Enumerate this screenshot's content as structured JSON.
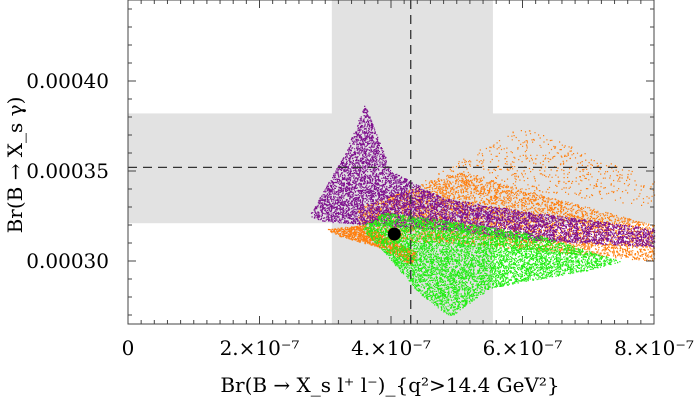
{
  "chart_data": {
    "type": "scatter",
    "title": "",
    "xlabel": "Br(B → X_s l⁺ l⁻)_{q²>14.4 GeV²}",
    "ylabel": "Br(B → X_s γ)",
    "xlim": [
      0,
      8e-07
    ],
    "ylim": [
      0.000265,
      0.000445
    ],
    "x_ticks": [
      {
        "value": 0,
        "label": "0"
      },
      {
        "value": 2e-07,
        "label": "2.×10⁻⁷"
      },
      {
        "value": 4e-07,
        "label": "4.×10⁻⁷"
      },
      {
        "value": 6e-07,
        "label": "6.×10⁻⁷"
      },
      {
        "value": 8e-07,
        "label": "8.×10⁻⁷"
      }
    ],
    "y_ticks": [
      {
        "value": 0.0003,
        "label": "0.00030"
      },
      {
        "value": 0.00035,
        "label": "0.00035"
      },
      {
        "value": 0.0004,
        "label": "0.00040"
      }
    ],
    "bands": {
      "x_band": [
        3.1e-07,
        5.55e-07
      ],
      "y_band": [
        0.000321,
        0.000382
      ],
      "color": "#e2e2e2"
    },
    "reference_lines": {
      "x": 4.3e-07,
      "y": 0.000352
    },
    "sm_point": {
      "x": 4.05e-07,
      "y": 0.000315
    },
    "series": [
      {
        "color": "#ff7f0e",
        "regions": [
          {
            "points": [
              [
                3.5e-07,
                0.00033
              ],
              [
                5e-07,
                0.00035
              ],
              [
                6.5e-07,
                0.000335
              ],
              [
                8e-07,
                0.00032
              ],
              [
                8e-07,
                0.0003
              ],
              [
                6.5e-07,
                0.000305
              ],
              [
                5e-07,
                0.00031
              ],
              [
                3.5e-07,
                0.000312
              ]
            ],
            "count": 5000
          },
          {
            "points": [
              [
                3e-07,
                0.000318
              ],
              [
                3.6e-07,
                0.00032
              ],
              [
                4.4e-07,
                0.000305
              ],
              [
                4.3e-07,
                0.000298
              ],
              [
                3.8e-07,
                0.000308
              ],
              [
                3.2e-07,
                0.000314
              ]
            ],
            "count": 1100
          },
          {
            "points": [
              [
                4.5e-07,
                0.000345
              ],
              [
                6e-07,
                0.000375
              ],
              [
                8e-07,
                0.000345
              ],
              [
                8e-07,
                0.00033
              ],
              [
                6e-07,
                0.00034
              ],
              [
                4.5e-07,
                0.000332
              ]
            ],
            "count": 600
          }
        ]
      },
      {
        "color": "#7e0f8e",
        "regions": [
          {
            "points": [
              [
                2.75e-07,
                0.000325
              ],
              [
                3.3e-07,
                0.00036
              ],
              [
                3.6e-07,
                0.000387
              ],
              [
                4e-07,
                0.00035
              ],
              [
                4.8e-07,
                0.000335
              ],
              [
                6e-07,
                0.000328
              ],
              [
                8e-07,
                0.000318
              ],
              [
                8e-07,
                0.000308
              ],
              [
                6e-07,
                0.000312
              ],
              [
                4.6e-07,
                0.000318
              ],
              [
                3.8e-07,
                0.00032
              ],
              [
                3e-07,
                0.000322
              ]
            ],
            "count": 7000
          }
        ]
      },
      {
        "color": "#22ee14",
        "regions": [
          {
            "points": [
              [
                3.55e-07,
                0.00032
              ],
              [
                3.9e-07,
                0.000327
              ],
              [
                5e-07,
                0.000322
              ],
              [
                6.2e-07,
                0.000315
              ],
              [
                7.5e-07,
                0.0003
              ],
              [
                7e-07,
                0.000295
              ],
              [
                5.5e-07,
                0.000285
              ],
              [
                4.9e-07,
                0.000269
              ],
              [
                4.4e-07,
                0.000283
              ],
              [
                3.9e-07,
                0.000305
              ],
              [
                3.6e-07,
                0.000316
              ]
            ],
            "count": 6500
          }
        ]
      }
    ]
  }
}
